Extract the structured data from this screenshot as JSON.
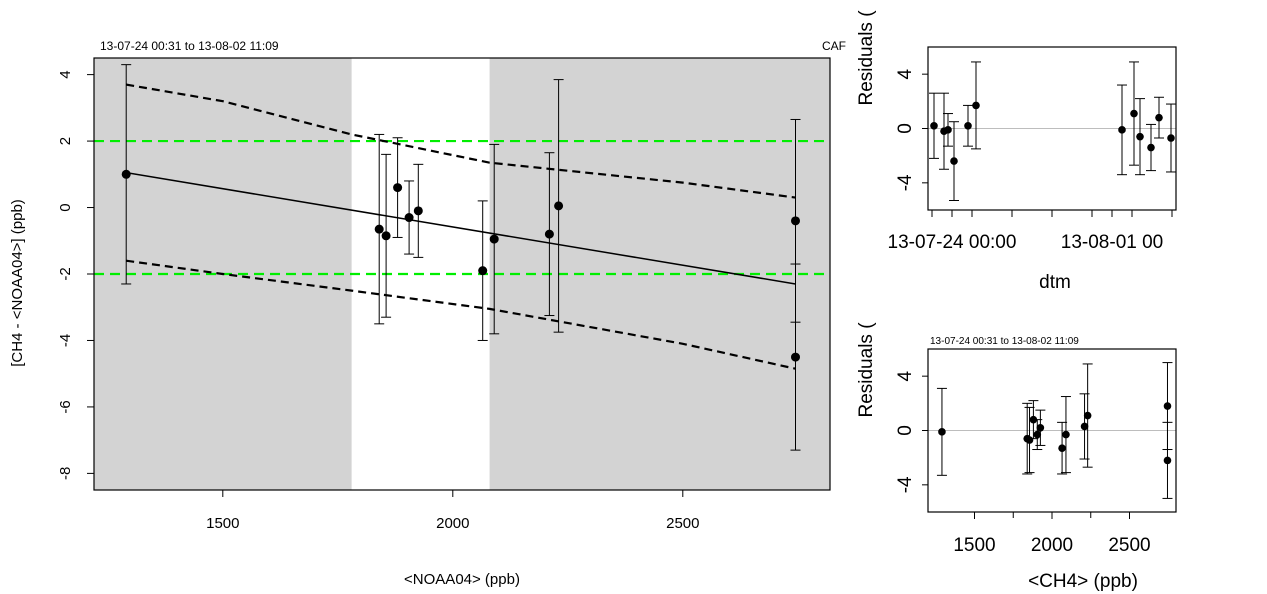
{
  "chart_data": [
    {
      "type": "scatter",
      "subtitle": "13-07-24 00:31 to 13-08-02 11:09",
      "corner_label": "CAF",
      "xlabel": "<NOAA04> (ppb)",
      "ylabel": "[CH4 - <NOAA04>] (ppb)",
      "xlim": [
        1220,
        2820
      ],
      "ylim": [
        -8.5,
        4.5
      ],
      "xticks": [
        "1500",
        "2000",
        "2500"
      ],
      "yticks": [
        "4",
        "2",
        "0",
        "-2",
        "-4",
        "-6",
        "-8"
      ],
      "shaded_ranges": [
        [
          1220,
          1780
        ],
        [
          2080,
          2820
        ]
      ],
      "reference_lines": [
        2,
        -2
      ],
      "reference_color": "#00ee00",
      "fit_line": {
        "x": [
          1290,
          2745
        ],
        "y": [
          1.05,
          -2.3
        ]
      },
      "confidence_upper": [
        [
          1290,
          3.7
        ],
        [
          1500,
          3.2
        ],
        [
          1780,
          2.2
        ],
        [
          2080,
          1.35
        ],
        [
          2500,
          0.75
        ],
        [
          2745,
          0.3
        ]
      ],
      "confidence_lower": [
        [
          1290,
          -1.6
        ],
        [
          1500,
          -2.0
        ],
        [
          1780,
          -2.5
        ],
        [
          2080,
          -3.05
        ],
        [
          2500,
          -4.1
        ],
        [
          2745,
          -4.85
        ]
      ],
      "points": [
        {
          "x": 1290,
          "y": 1.0,
          "err": 3.3
        },
        {
          "x": 1840,
          "y": -0.65,
          "err": 2.85
        },
        {
          "x": 1855,
          "y": -0.85,
          "err": 2.45
        },
        {
          "x": 1880,
          "y": 0.6,
          "err": 1.5
        },
        {
          "x": 1905,
          "y": -0.3,
          "err": 1.1
        },
        {
          "x": 1925,
          "y": -0.1,
          "err": 1.4
        },
        {
          "x": 2065,
          "y": -1.9,
          "err": 2.1
        },
        {
          "x": 2090,
          "y": -0.95,
          "err": 2.85
        },
        {
          "x": 2210,
          "y": -0.8,
          "err": 2.45
        },
        {
          "x": 2230,
          "y": 0.05,
          "err": 3.8
        },
        {
          "x": 2745,
          "y": -0.4,
          "err": 3.05
        },
        {
          "x": 2745,
          "y": -4.5,
          "err": 2.8
        }
      ]
    },
    {
      "type": "scatter",
      "ylabel": "Residuals (",
      "xlabel": "dtm",
      "ylim": [
        -6,
        6
      ],
      "yticks": [
        "4",
        "0",
        "-4"
      ],
      "xticks": [
        "13-07-24 00:00",
        "13-08-01 00"
      ],
      "xtick_positions_days": [
        0,
        8
      ],
      "xlim_days": [
        -1.2,
        11.2
      ],
      "points": [
        {
          "x": -0.9,
          "y": 0.2,
          "err": 2.4
        },
        {
          "x": -0.4,
          "y": -0.2,
          "err": 2.8
        },
        {
          "x": -0.2,
          "y": -0.1,
          "err": 1.2
        },
        {
          "x": 0.1,
          "y": -2.4,
          "err": 2.9
        },
        {
          "x": 0.8,
          "y": 0.2,
          "err": 1.5
        },
        {
          "x": 1.2,
          "y": 1.7,
          "err": 3.2
        },
        {
          "x": 8.5,
          "y": -0.1,
          "err": 3.3
        },
        {
          "x": 9.1,
          "y": 1.1,
          "err": 3.8
        },
        {
          "x": 9.4,
          "y": -0.6,
          "err": 2.8
        },
        {
          "x": 9.95,
          "y": -1.4,
          "err": 1.7
        },
        {
          "x": 10.35,
          "y": 0.8,
          "err": 1.5
        },
        {
          "x": 10.95,
          "y": -0.7,
          "err": 2.5
        }
      ]
    },
    {
      "type": "scatter",
      "subtitle": "13-07-24 00:31 to 13-08-02 11:09",
      "ylabel": "Residuals (",
      "xlabel": "<CH4> (ppb)",
      "xlim": [
        1200,
        2800
      ],
      "ylim": [
        -6,
        6
      ],
      "xticks": [
        "1500",
        "2000",
        "2500"
      ],
      "yticks": [
        "4",
        "0",
        "-4"
      ],
      "points": [
        {
          "x": 1290,
          "y": -0.1,
          "err": 3.2
        },
        {
          "x": 1840,
          "y": -0.6,
          "err": 2.6
        },
        {
          "x": 1855,
          "y": -0.7,
          "err": 2.4
        },
        {
          "x": 1880,
          "y": 0.8,
          "err": 1.4
        },
        {
          "x": 1905,
          "y": -0.3,
          "err": 1.1
        },
        {
          "x": 1925,
          "y": 0.2,
          "err": 1.3
        },
        {
          "x": 2065,
          "y": -1.3,
          "err": 1.9
        },
        {
          "x": 2090,
          "y": -0.3,
          "err": 2.8
        },
        {
          "x": 2210,
          "y": 0.3,
          "err": 2.4
        },
        {
          "x": 2230,
          "y": 1.1,
          "err": 3.8
        },
        {
          "x": 2745,
          "y": 1.8,
          "err": 3.2
        },
        {
          "x": 2745,
          "y": -2.2,
          "err": 2.8
        }
      ]
    }
  ]
}
